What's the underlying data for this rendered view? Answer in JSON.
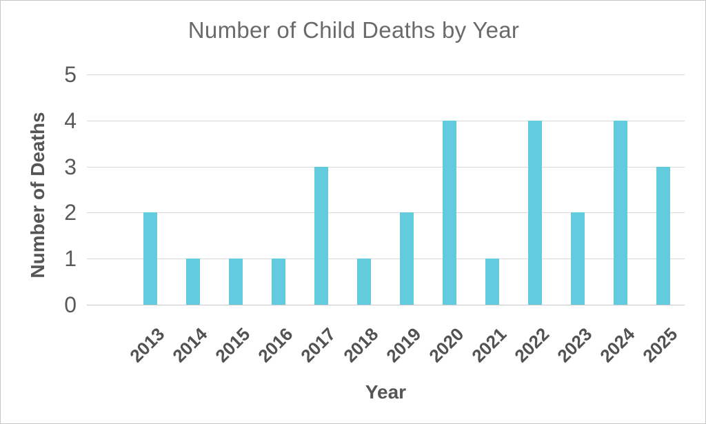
{
  "chart_data": {
    "type": "bar",
    "title": "Number of Child Deaths by Year",
    "xlabel": "Year",
    "ylabel": "Number of Deaths",
    "categories": [
      "2013",
      "2014",
      "2015",
      "2016",
      "2017",
      "2018",
      "2019",
      "2020",
      "2021",
      "2022",
      "2023",
      "2024",
      "2025"
    ],
    "values": [
      2,
      1,
      1,
      1,
      3,
      1,
      2,
      4,
      1,
      4,
      2,
      4,
      3
    ],
    "yticks": [
      0,
      1,
      2,
      3,
      4,
      5
    ],
    "ylim": [
      0,
      5
    ],
    "grid": "horizontal-gridlines-on",
    "legend": "none",
    "colors": {
      "bar": "#62cbde",
      "gridline": "#d9d9d9",
      "axis_line": "#c9c9c9",
      "title_text": "#6a6a6a",
      "axis_text": "#595959",
      "label_text": "#525252"
    }
  }
}
